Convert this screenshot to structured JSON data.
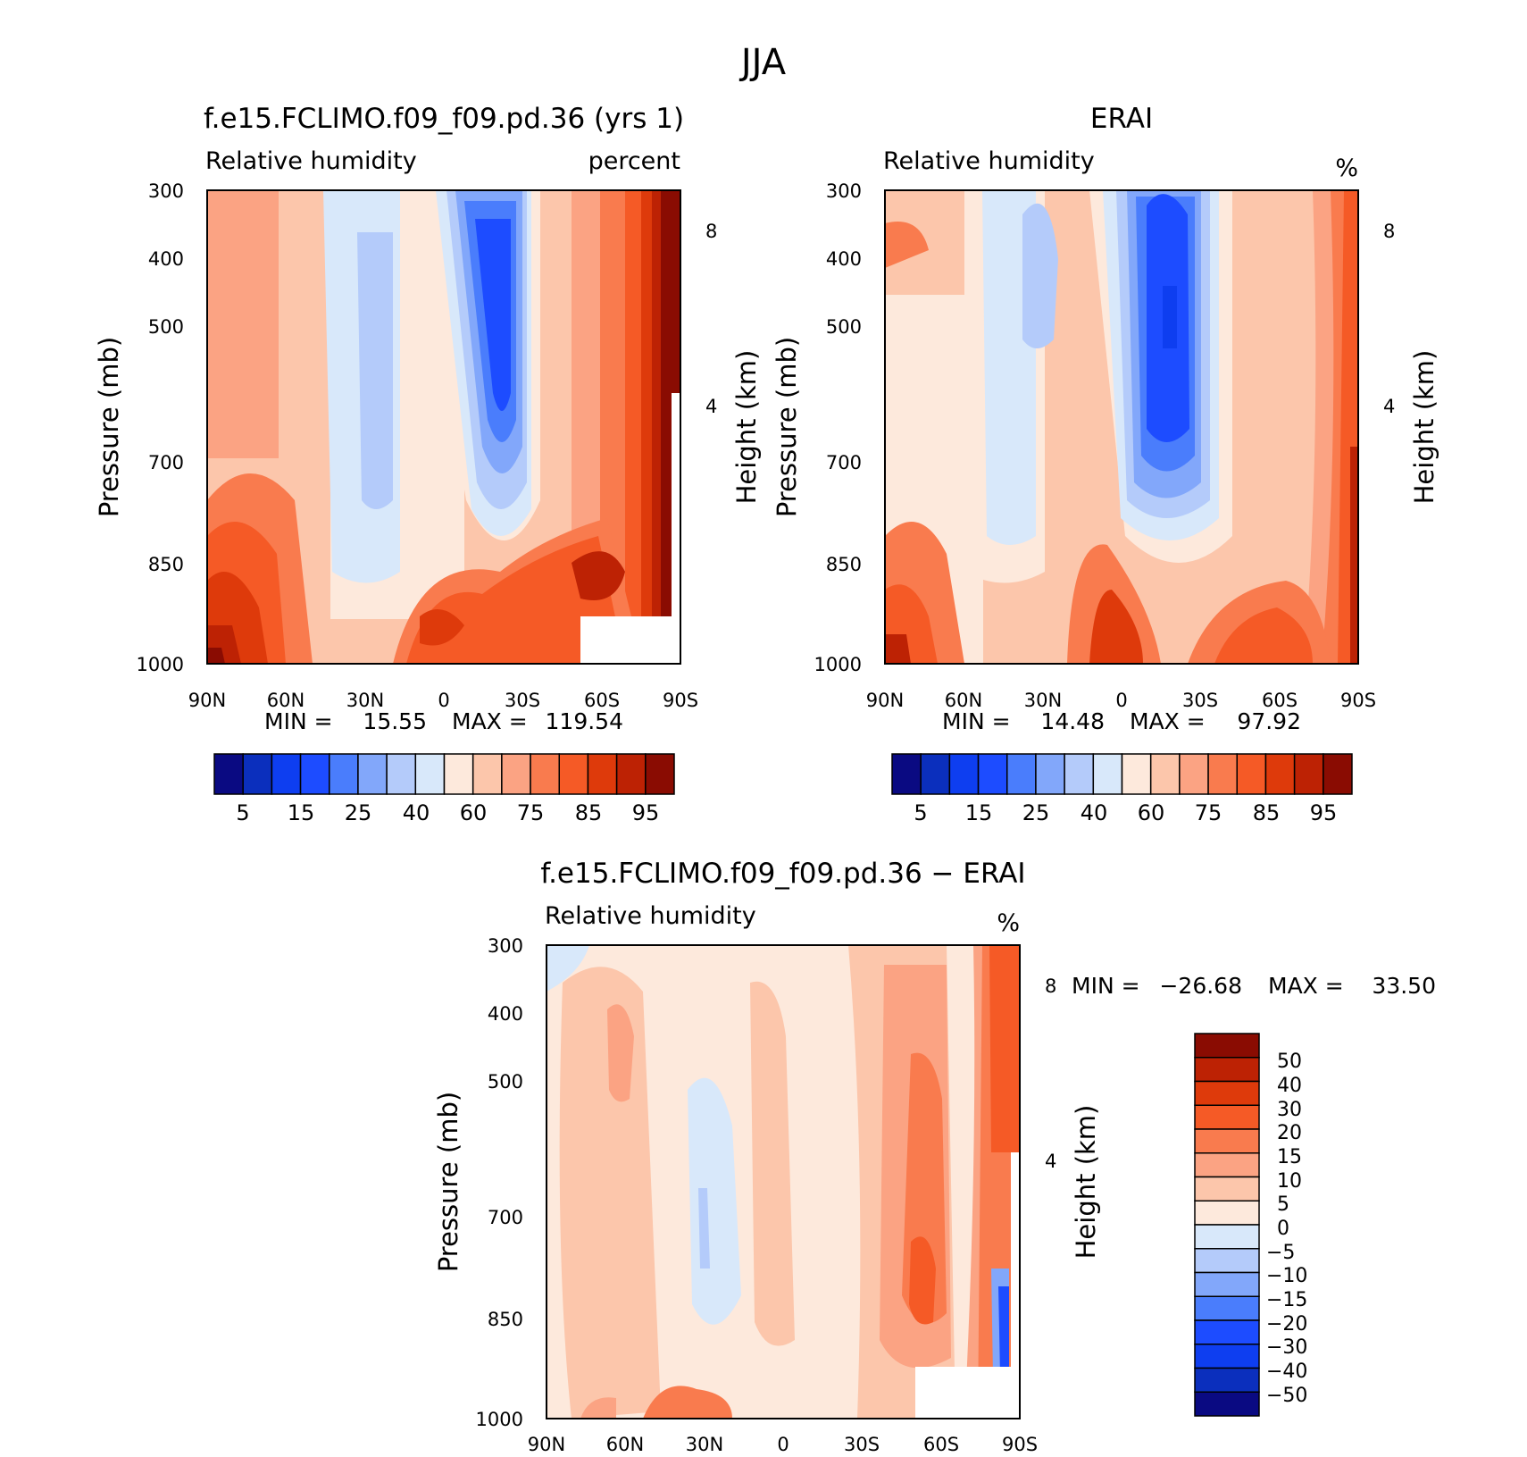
{
  "figure_title": "JJA",
  "colors": {
    "seq": [
      "#0a0a82",
      "#0b2fbd",
      "#0e3ef0",
      "#1d4cff",
      "#4a7dfc",
      "#82a7fa",
      "#b4cbfa",
      "#d8e8fa",
      "#fde9dc",
      "#fcc6ab",
      "#fba383",
      "#f97b4e",
      "#f55a26",
      "#de3a0b",
      "#bd2204",
      "#8a0c02"
    ],
    "diff": [
      "#0a0a82",
      "#0b2fbd",
      "#0e3ef0",
      "#1d4cff",
      "#4a7dfc",
      "#82a7fa",
      "#b4cbfa",
      "#d8e8fa",
      "#fde9dc",
      "#fcc6ab",
      "#fba383",
      "#f97b4e",
      "#f55a26",
      "#de3a0b",
      "#bd2204",
      "#8a0c02"
    ]
  },
  "chart_data": [
    {
      "type": "heatmap",
      "title": "f.e15.FCLIMO.f09_f09.pd.36 (yrs 1)",
      "left_label": "Relative humidity",
      "right_label": "percent",
      "ylabel": "Pressure (mb)",
      "ylabel_right": "Height (km)",
      "x_ticks": [
        "90N",
        "60N",
        "30N",
        "0",
        "30S",
        "60S",
        "90S"
      ],
      "y_ticks": [
        "300",
        "400",
        "500",
        "700",
        "850",
        "1000"
      ],
      "y_ticks_right": [
        "8",
        "4"
      ],
      "ylim": [
        1000,
        300
      ],
      "min_label": "MIN =",
      "min_value": "15.55",
      "max_label": "MAX =",
      "max_value": "119.54",
      "min": 15.55,
      "max": 119.54,
      "colorbar_ticks": [
        "5",
        "15",
        "25",
        "40",
        "60",
        "75",
        "85",
        "95"
      ]
    },
    {
      "type": "heatmap",
      "title": "ERAI",
      "left_label": "Relative humidity",
      "right_label": "%",
      "ylabel": "Pressure (mb)",
      "ylabel_right": "Height (km)",
      "x_ticks": [
        "90N",
        "60N",
        "30N",
        "0",
        "30S",
        "60S",
        "90S"
      ],
      "y_ticks": [
        "300",
        "400",
        "500",
        "700",
        "850",
        "1000"
      ],
      "y_ticks_right": [
        "8",
        "4"
      ],
      "ylim": [
        1000,
        300
      ],
      "min_label": "MIN =",
      "min_value": "14.48",
      "max_label": "MAX =",
      "max_value": "97.92",
      "min": 14.48,
      "max": 97.92,
      "colorbar_ticks": [
        "5",
        "15",
        "25",
        "40",
        "60",
        "75",
        "85",
        "95"
      ]
    },
    {
      "type": "heatmap",
      "title": "f.e15.FCLIMO.f09_f09.pd.36 − ERAI",
      "left_label": "Relative humidity",
      "right_label": "%",
      "ylabel": "Pressure (mb)",
      "ylabel_right": "Height (km)",
      "x_ticks": [
        "90N",
        "60N",
        "30N",
        "0",
        "30S",
        "60S",
        "90S"
      ],
      "y_ticks": [
        "300",
        "400",
        "500",
        "700",
        "850",
        "1000"
      ],
      "y_ticks_right": [
        "8",
        "4"
      ],
      "ylim": [
        1000,
        300
      ],
      "min_label": "MIN =",
      "min_value": "−26.68",
      "max_label": "MAX =",
      "max_value": "33.50",
      "min": -26.68,
      "max": 33.5,
      "colorbar_ticks": [
        "50",
        "40",
        "30",
        "20",
        "15",
        "10",
        "5",
        "0",
        "−5",
        "−10",
        "−15",
        "−20",
        "−30",
        "−40",
        "−50"
      ]
    }
  ]
}
